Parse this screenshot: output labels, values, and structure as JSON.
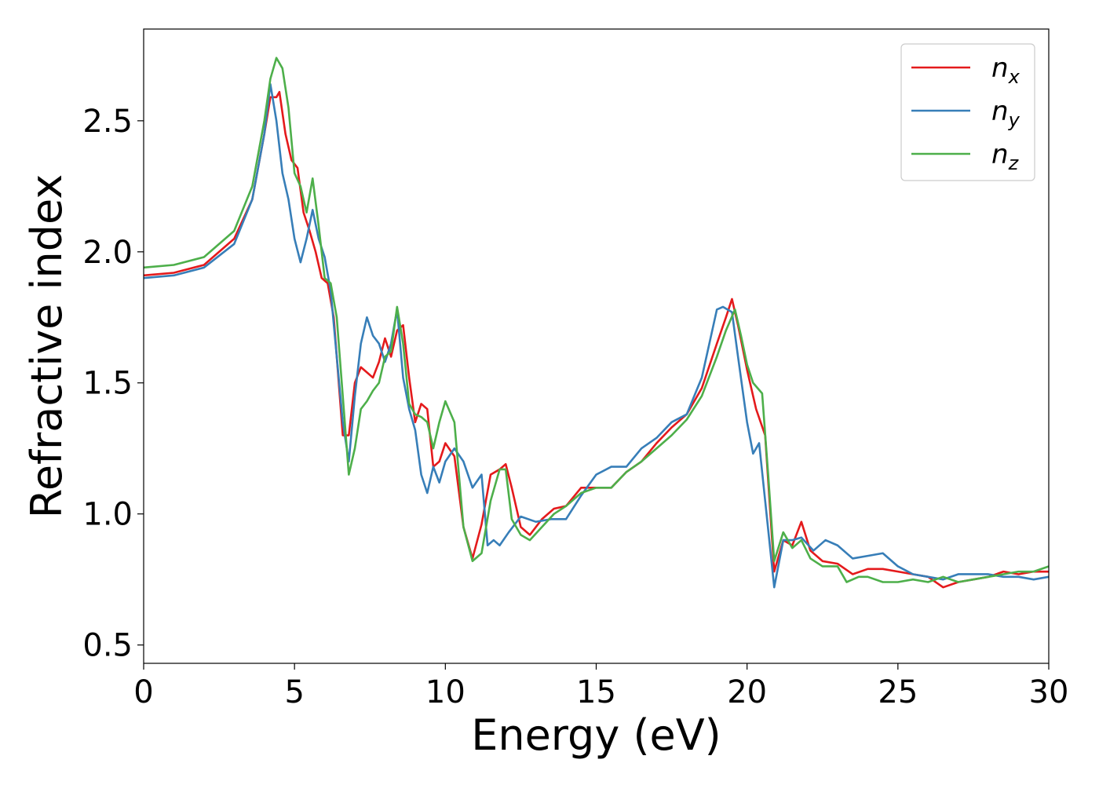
{
  "chart_data": {
    "type": "line",
    "title": "",
    "xlabel": "Energy (eV)",
    "ylabel": "Refractive index",
    "xlim": [
      0,
      30
    ],
    "ylim": [
      0.43,
      2.85
    ],
    "x_ticks": [
      0,
      5,
      10,
      15,
      20,
      25,
      30
    ],
    "x_tick_labels": [
      "0",
      "5",
      "10",
      "15",
      "20",
      "25",
      "30"
    ],
    "y_ticks": [
      0.5,
      1.0,
      1.5,
      2.0,
      2.5
    ],
    "y_tick_labels": [
      "0.5",
      "1.0",
      "1.5",
      "2.0",
      "2.5"
    ],
    "grid": false,
    "legend_position": "top-right",
    "series": [
      {
        "name": "n_x",
        "label_main": "n",
        "label_sub": "x",
        "color": "#e41a1c",
        "points": [
          [
            0,
            1.91
          ],
          [
            1,
            1.92
          ],
          [
            2,
            1.95
          ],
          [
            3,
            2.05
          ],
          [
            3.6,
            2.2
          ],
          [
            4.0,
            2.45
          ],
          [
            4.2,
            2.59
          ],
          [
            4.4,
            2.59
          ],
          [
            4.5,
            2.61
          ],
          [
            4.7,
            2.45
          ],
          [
            4.9,
            2.35
          ],
          [
            5.1,
            2.32
          ],
          [
            5.3,
            2.15
          ],
          [
            5.5,
            2.08
          ],
          [
            5.7,
            2.0
          ],
          [
            5.9,
            1.9
          ],
          [
            6.1,
            1.88
          ],
          [
            6.3,
            1.75
          ],
          [
            6.5,
            1.45
          ],
          [
            6.6,
            1.3
          ],
          [
            6.8,
            1.3
          ],
          [
            7.0,
            1.5
          ],
          [
            7.2,
            1.56
          ],
          [
            7.4,
            1.54
          ],
          [
            7.6,
            1.52
          ],
          [
            7.8,
            1.58
          ],
          [
            8.0,
            1.67
          ],
          [
            8.2,
            1.6
          ],
          [
            8.4,
            1.7
          ],
          [
            8.6,
            1.72
          ],
          [
            8.8,
            1.52
          ],
          [
            9.0,
            1.35
          ],
          [
            9.2,
            1.42
          ],
          [
            9.4,
            1.4
          ],
          [
            9.6,
            1.18
          ],
          [
            9.8,
            1.2
          ],
          [
            10.0,
            1.27
          ],
          [
            10.3,
            1.22
          ],
          [
            10.6,
            0.95
          ],
          [
            10.9,
            0.83
          ],
          [
            11.2,
            0.96
          ],
          [
            11.5,
            1.15
          ],
          [
            11.8,
            1.17
          ],
          [
            12.0,
            1.19
          ],
          [
            12.2,
            1.1
          ],
          [
            12.5,
            0.95
          ],
          [
            12.8,
            0.92
          ],
          [
            13.2,
            0.98
          ],
          [
            13.6,
            1.02
          ],
          [
            14.0,
            1.03
          ],
          [
            14.5,
            1.1
          ],
          [
            15.0,
            1.1
          ],
          [
            15.5,
            1.1
          ],
          [
            16.0,
            1.16
          ],
          [
            16.5,
            1.2
          ],
          [
            17.0,
            1.27
          ],
          [
            17.5,
            1.33
          ],
          [
            18.0,
            1.38
          ],
          [
            18.5,
            1.48
          ],
          [
            19.0,
            1.65
          ],
          [
            19.3,
            1.75
          ],
          [
            19.5,
            1.82
          ],
          [
            19.7,
            1.72
          ],
          [
            20.0,
            1.55
          ],
          [
            20.3,
            1.4
          ],
          [
            20.6,
            1.3
          ],
          [
            20.9,
            0.78
          ],
          [
            21.2,
            0.9
          ],
          [
            21.5,
            0.88
          ],
          [
            21.8,
            0.97
          ],
          [
            22.1,
            0.86
          ],
          [
            22.5,
            0.82
          ],
          [
            23.0,
            0.81
          ],
          [
            23.5,
            0.77
          ],
          [
            24.0,
            0.79
          ],
          [
            24.5,
            0.79
          ],
          [
            25.0,
            0.78
          ],
          [
            25.5,
            0.77
          ],
          [
            26.0,
            0.76
          ],
          [
            26.5,
            0.72
          ],
          [
            27.0,
            0.74
          ],
          [
            27.5,
            0.75
          ],
          [
            28.0,
            0.76
          ],
          [
            28.5,
            0.78
          ],
          [
            29.0,
            0.77
          ],
          [
            29.5,
            0.78
          ],
          [
            30,
            0.78
          ]
        ]
      },
      {
        "name": "n_y",
        "label_main": "n",
        "label_sub": "y",
        "color": "#377eb8",
        "points": [
          [
            0,
            1.9
          ],
          [
            1,
            1.91
          ],
          [
            2,
            1.94
          ],
          [
            3,
            2.03
          ],
          [
            3.6,
            2.2
          ],
          [
            4.0,
            2.45
          ],
          [
            4.2,
            2.64
          ],
          [
            4.4,
            2.5
          ],
          [
            4.6,
            2.3
          ],
          [
            4.8,
            2.2
          ],
          [
            5.0,
            2.05
          ],
          [
            5.2,
            1.96
          ],
          [
            5.4,
            2.05
          ],
          [
            5.6,
            2.16
          ],
          [
            5.8,
            2.05
          ],
          [
            6.0,
            1.98
          ],
          [
            6.2,
            1.85
          ],
          [
            6.4,
            1.6
          ],
          [
            6.6,
            1.35
          ],
          [
            6.8,
            1.2
          ],
          [
            7.0,
            1.45
          ],
          [
            7.2,
            1.65
          ],
          [
            7.4,
            1.75
          ],
          [
            7.6,
            1.68
          ],
          [
            7.8,
            1.65
          ],
          [
            8.0,
            1.58
          ],
          [
            8.2,
            1.65
          ],
          [
            8.4,
            1.78
          ],
          [
            8.6,
            1.52
          ],
          [
            8.8,
            1.4
          ],
          [
            9.0,
            1.32
          ],
          [
            9.2,
            1.15
          ],
          [
            9.4,
            1.08
          ],
          [
            9.6,
            1.18
          ],
          [
            9.8,
            1.12
          ],
          [
            10.0,
            1.2
          ],
          [
            10.3,
            1.25
          ],
          [
            10.6,
            1.2
          ],
          [
            10.9,
            1.1
          ],
          [
            11.2,
            1.15
          ],
          [
            11.4,
            0.88
          ],
          [
            11.6,
            0.9
          ],
          [
            11.8,
            0.88
          ],
          [
            12.1,
            0.93
          ],
          [
            12.5,
            0.99
          ],
          [
            13.0,
            0.97
          ],
          [
            13.5,
            0.98
          ],
          [
            14.0,
            0.98
          ],
          [
            14.5,
            1.07
          ],
          [
            15.0,
            1.15
          ],
          [
            15.5,
            1.18
          ],
          [
            16.0,
            1.18
          ],
          [
            16.5,
            1.25
          ],
          [
            17.0,
            1.29
          ],
          [
            17.5,
            1.35
          ],
          [
            18.0,
            1.38
          ],
          [
            18.5,
            1.52
          ],
          [
            19.0,
            1.78
          ],
          [
            19.2,
            1.79
          ],
          [
            19.5,
            1.77
          ],
          [
            19.7,
            1.6
          ],
          [
            20.0,
            1.35
          ],
          [
            20.2,
            1.23
          ],
          [
            20.4,
            1.27
          ],
          [
            20.6,
            1.05
          ],
          [
            20.9,
            0.72
          ],
          [
            21.2,
            0.9
          ],
          [
            21.5,
            0.9
          ],
          [
            21.8,
            0.91
          ],
          [
            22.2,
            0.86
          ],
          [
            22.6,
            0.9
          ],
          [
            23.0,
            0.88
          ],
          [
            23.5,
            0.83
          ],
          [
            24.0,
            0.84
          ],
          [
            24.5,
            0.85
          ],
          [
            25.0,
            0.8
          ],
          [
            25.5,
            0.77
          ],
          [
            26.0,
            0.76
          ],
          [
            26.5,
            0.75
          ],
          [
            27.0,
            0.77
          ],
          [
            27.5,
            0.77
          ],
          [
            28.0,
            0.77
          ],
          [
            28.5,
            0.76
          ],
          [
            29.0,
            0.76
          ],
          [
            29.5,
            0.75
          ],
          [
            30,
            0.76
          ]
        ]
      },
      {
        "name": "n_z",
        "label_main": "n",
        "label_sub": "z",
        "color": "#4daf4a",
        "points": [
          [
            0,
            1.94
          ],
          [
            1,
            1.95
          ],
          [
            2,
            1.98
          ],
          [
            3,
            2.08
          ],
          [
            3.6,
            2.25
          ],
          [
            4.0,
            2.5
          ],
          [
            4.2,
            2.66
          ],
          [
            4.4,
            2.74
          ],
          [
            4.6,
            2.7
          ],
          [
            4.8,
            2.55
          ],
          [
            5.0,
            2.3
          ],
          [
            5.2,
            2.25
          ],
          [
            5.4,
            2.15
          ],
          [
            5.6,
            2.28
          ],
          [
            5.8,
            2.1
          ],
          [
            6.0,
            1.9
          ],
          [
            6.2,
            1.88
          ],
          [
            6.4,
            1.75
          ],
          [
            6.6,
            1.45
          ],
          [
            6.8,
            1.15
          ],
          [
            7.0,
            1.25
          ],
          [
            7.2,
            1.4
          ],
          [
            7.4,
            1.43
          ],
          [
            7.6,
            1.47
          ],
          [
            7.8,
            1.5
          ],
          [
            8.0,
            1.6
          ],
          [
            8.2,
            1.62
          ],
          [
            8.4,
            1.79
          ],
          [
            8.6,
            1.65
          ],
          [
            8.8,
            1.42
          ],
          [
            9.0,
            1.38
          ],
          [
            9.2,
            1.37
          ],
          [
            9.4,
            1.35
          ],
          [
            9.6,
            1.25
          ],
          [
            9.8,
            1.35
          ],
          [
            10.0,
            1.43
          ],
          [
            10.3,
            1.35
          ],
          [
            10.6,
            0.95
          ],
          [
            10.9,
            0.82
          ],
          [
            11.2,
            0.85
          ],
          [
            11.5,
            1.05
          ],
          [
            11.8,
            1.17
          ],
          [
            12.0,
            1.17
          ],
          [
            12.2,
            0.98
          ],
          [
            12.5,
            0.92
          ],
          [
            12.8,
            0.9
          ],
          [
            13.2,
            0.95
          ],
          [
            13.6,
            1.0
          ],
          [
            14.0,
            1.03
          ],
          [
            14.5,
            1.08
          ],
          [
            15.0,
            1.1
          ],
          [
            15.5,
            1.1
          ],
          [
            16.0,
            1.16
          ],
          [
            16.5,
            1.2
          ],
          [
            17.0,
            1.25
          ],
          [
            17.5,
            1.3
          ],
          [
            18.0,
            1.36
          ],
          [
            18.5,
            1.45
          ],
          [
            19.0,
            1.6
          ],
          [
            19.3,
            1.7
          ],
          [
            19.6,
            1.78
          ],
          [
            19.8,
            1.68
          ],
          [
            20.0,
            1.57
          ],
          [
            20.2,
            1.5
          ],
          [
            20.5,
            1.46
          ],
          [
            20.7,
            1.15
          ],
          [
            20.9,
            0.82
          ],
          [
            21.2,
            0.93
          ],
          [
            21.5,
            0.87
          ],
          [
            21.8,
            0.9
          ],
          [
            22.1,
            0.83
          ],
          [
            22.5,
            0.8
          ],
          [
            23.0,
            0.8
          ],
          [
            23.3,
            0.74
          ],
          [
            23.7,
            0.76
          ],
          [
            24.0,
            0.76
          ],
          [
            24.5,
            0.74
          ],
          [
            25.0,
            0.74
          ],
          [
            25.5,
            0.75
          ],
          [
            26.0,
            0.74
          ],
          [
            26.5,
            0.76
          ],
          [
            27.0,
            0.74
          ],
          [
            27.5,
            0.75
          ],
          [
            28.0,
            0.76
          ],
          [
            28.5,
            0.77
          ],
          [
            29.0,
            0.78
          ],
          [
            29.5,
            0.78
          ],
          [
            30,
            0.8
          ]
        ]
      }
    ]
  }
}
